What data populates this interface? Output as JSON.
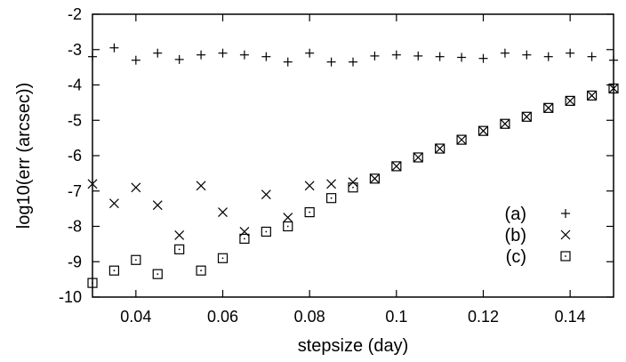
{
  "chart_data": {
    "type": "scatter",
    "title": "",
    "xlabel": "stepsize (day)",
    "ylabel": "log10(err (arcsec))",
    "xlim": [
      0.03,
      0.15
    ],
    "ylim": [
      -10,
      -2
    ],
    "xticks": [
      0.04,
      0.06,
      0.08,
      0.1,
      0.12,
      0.14
    ],
    "xtick_labels": [
      "0.04",
      "0.06",
      "0.08",
      "0.1",
      "0.12",
      "0.14"
    ],
    "yticks": [
      -10,
      -9,
      -8,
      -7,
      -6,
      -5,
      -4,
      -3,
      -2
    ],
    "ytick_labels": [
      "-10",
      "-9",
      "-8",
      "-7",
      "-6",
      "-5",
      "-4",
      "-3",
      "-2"
    ],
    "grid": false,
    "legend_position": "right",
    "x": [
      0.03,
      0.035,
      0.04,
      0.045,
      0.05,
      0.055,
      0.06,
      0.065,
      0.07,
      0.075,
      0.08,
      0.085,
      0.09,
      0.095,
      0.1,
      0.105,
      0.11,
      0.115,
      0.12,
      0.125,
      0.13,
      0.135,
      0.14,
      0.145,
      0.15
    ],
    "series": [
      {
        "name": "(a)",
        "marker": "plus",
        "values": [
          -3.2,
          -2.95,
          -3.3,
          -3.1,
          -3.28,
          -3.15,
          -3.1,
          -3.15,
          -3.2,
          -3.35,
          -3.1,
          -3.35,
          -3.35,
          -3.18,
          -3.15,
          -3.18,
          -3.2,
          -3.22,
          -3.25,
          -3.1,
          -3.15,
          -3.2,
          -3.1,
          -3.2,
          -3.3
        ]
      },
      {
        "name": "(b)",
        "marker": "cross",
        "values": [
          -6.8,
          -7.35,
          -6.9,
          -7.4,
          -8.25,
          -6.85,
          -7.6,
          -8.15,
          -7.1,
          -7.75,
          -6.85,
          -6.8,
          -6.75,
          -6.65,
          -6.3,
          -6.05,
          -5.8,
          -5.55,
          -5.3,
          -5.1,
          -4.9,
          -4.65,
          -4.45,
          -4.3,
          -4.1
        ]
      },
      {
        "name": "(c)",
        "marker": "boxdot",
        "values": [
          -9.6,
          -9.25,
          -8.95,
          -9.35,
          -8.65,
          -9.25,
          -8.9,
          -8.35,
          -8.15,
          -8.0,
          -7.6,
          -7.2,
          -6.9,
          -6.65,
          -6.3,
          -6.05,
          -5.8,
          -5.55,
          -5.3,
          -5.1,
          -4.9,
          -4.65,
          -4.45,
          -4.3,
          -4.1
        ]
      }
    ]
  }
}
